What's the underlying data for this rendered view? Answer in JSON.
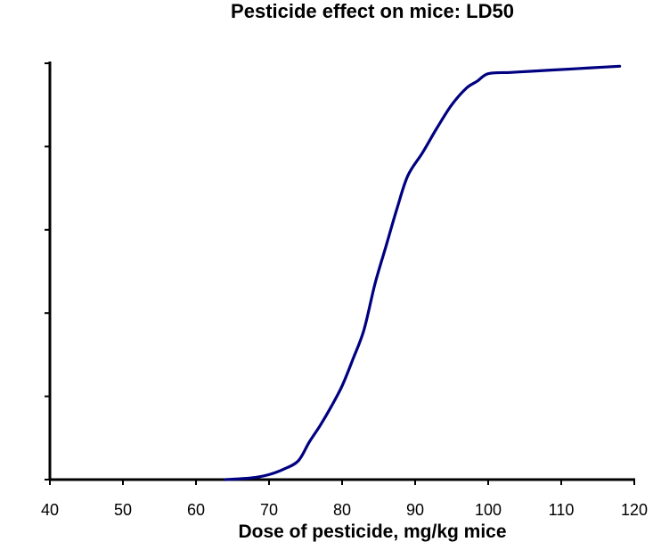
{
  "chart_data": {
    "type": "line",
    "title": "Pesticide effect on mice: LD50",
    "xlabel": "Dose of pesticide, mg/kg mice",
    "ylabel": "",
    "xlim": [
      40,
      120
    ],
    "ylim": [
      0,
      100
    ],
    "x_ticks": [
      40,
      50,
      60,
      70,
      80,
      90,
      100,
      110,
      120
    ],
    "x_tick_labels": [
      "40",
      "50",
      "60",
      "70",
      "80",
      "90",
      "100",
      "110",
      "120"
    ],
    "y_ticks": [
      0,
      20,
      40,
      60,
      80,
      100
    ],
    "y_tick_labels_shown": false,
    "grid": false,
    "line_color": "#000080",
    "series": [
      {
        "x": [
          64,
          66,
          68,
          70,
          72,
          74,
          75.5,
          77,
          78.5,
          80,
          81.5,
          83,
          84.5,
          86,
          87.5,
          89,
          91,
          93,
          95,
          97,
          98.5,
          100,
          103,
          106,
          110,
          114,
          118
        ],
        "y": [
          0,
          0.2,
          0.5,
          1.2,
          2.5,
          4.5,
          9,
          13,
          17.5,
          22.5,
          29,
          36,
          47,
          56,
          65,
          73,
          78.5,
          84.5,
          90,
          94,
          95.7,
          97.5,
          97.8,
          98.1,
          98.5,
          98.9,
          99.3
        ]
      }
    ]
  }
}
